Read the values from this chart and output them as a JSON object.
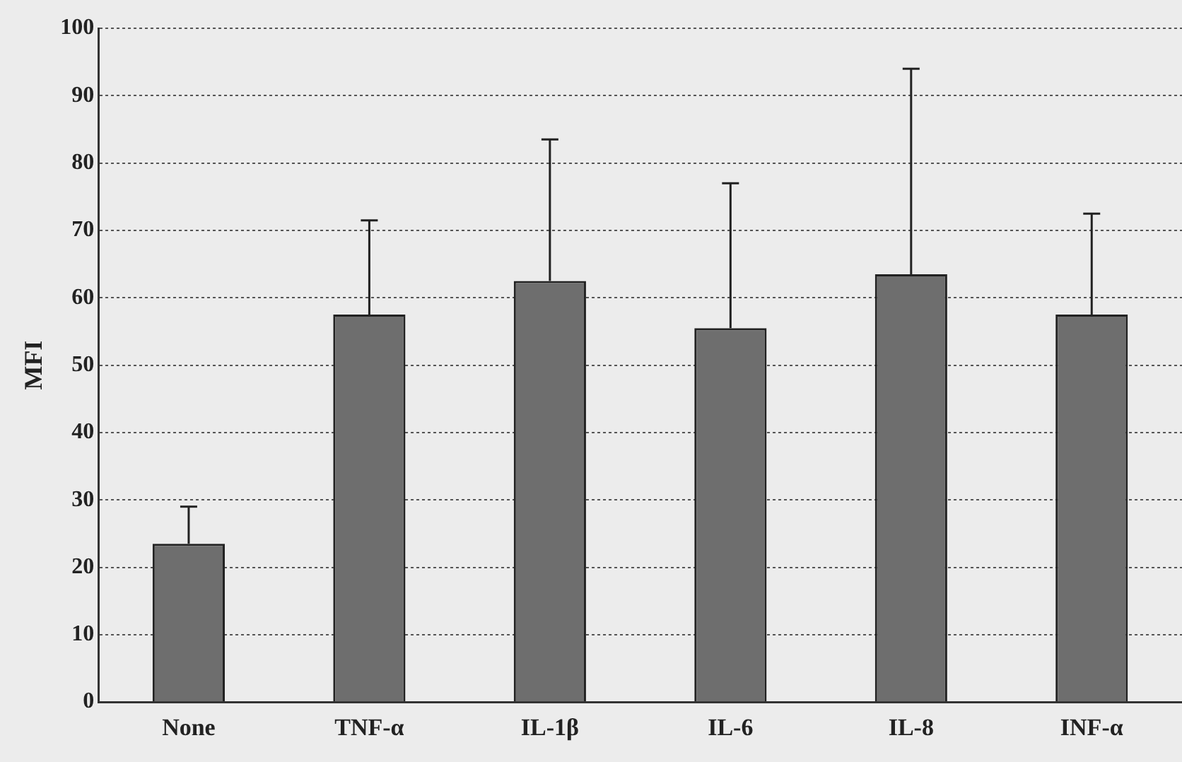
{
  "chart_data": {
    "type": "bar",
    "ylabel": "MFI",
    "categories": [
      "None",
      "TNF-α",
      "IL-1β",
      "IL-6",
      "IL-8",
      "INF-α"
    ],
    "values": [
      23.5,
      57.5,
      62.5,
      55.5,
      63.5,
      57.5
    ],
    "errors": [
      [
        23.5,
        29
      ],
      [
        57.5,
        71.5
      ],
      [
        62.5,
        83.5
      ],
      [
        55.5,
        77
      ],
      [
        63.5,
        94
      ],
      [
        57.5,
        72.5
      ]
    ],
    "color": "#6e6e6e",
    "ylim": [
      0,
      100
    ],
    "yticks": [
      0,
      10,
      20,
      30,
      40,
      50,
      60,
      70,
      80,
      90,
      100
    ],
    "grid": "y",
    "line_style": "dotted"
  }
}
